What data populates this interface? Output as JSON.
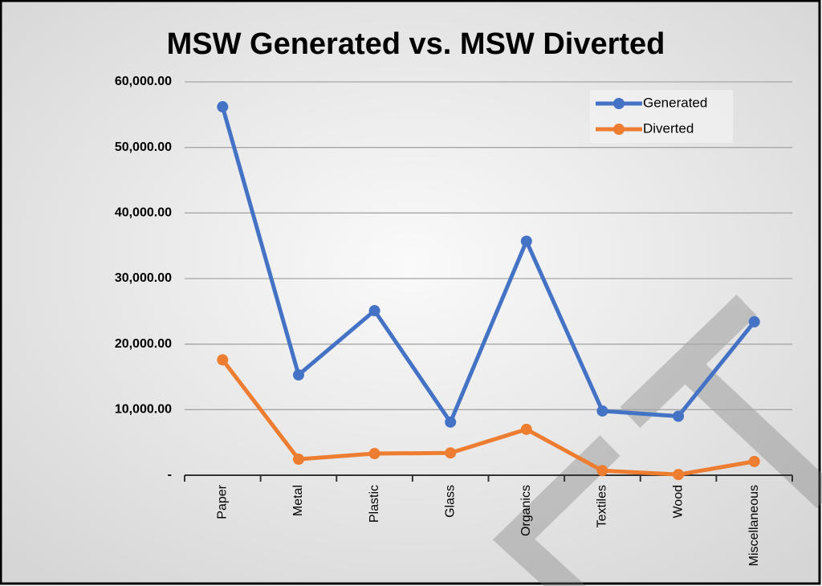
{
  "chart_data": {
    "type": "line",
    "title": "MSW Generated vs. MSW Diverted",
    "categories": [
      "Paper",
      "Metal",
      "Plastic",
      "Glass",
      "Organics",
      "Textiles",
      "Wood",
      "Miscellaneous"
    ],
    "series": [
      {
        "name": "Generated",
        "color": "#4472c4",
        "values": [
          56200,
          15300,
          25100,
          8100,
          35700,
          9800,
          9000,
          23400
        ]
      },
      {
        "name": "Diverted",
        "color": "#ed7d31",
        "values": [
          17600,
          2450,
          3300,
          3400,
          7000,
          700,
          100,
          2100
        ]
      }
    ],
    "ylim": [
      0,
      60000
    ],
    "yticks": [
      {
        "value": 0,
        "label": "-"
      },
      {
        "value": 10000,
        "label": "10,000.00"
      },
      {
        "value": 20000,
        "label": "20,000.00"
      },
      {
        "value": 30000,
        "label": "30,000.00"
      },
      {
        "value": 40000,
        "label": "40,000.00"
      },
      {
        "value": 50000,
        "label": "50,000.00"
      },
      {
        "value": 60000,
        "label": "60,000.00"
      }
    ],
    "grid": true,
    "legend": "top-right"
  }
}
